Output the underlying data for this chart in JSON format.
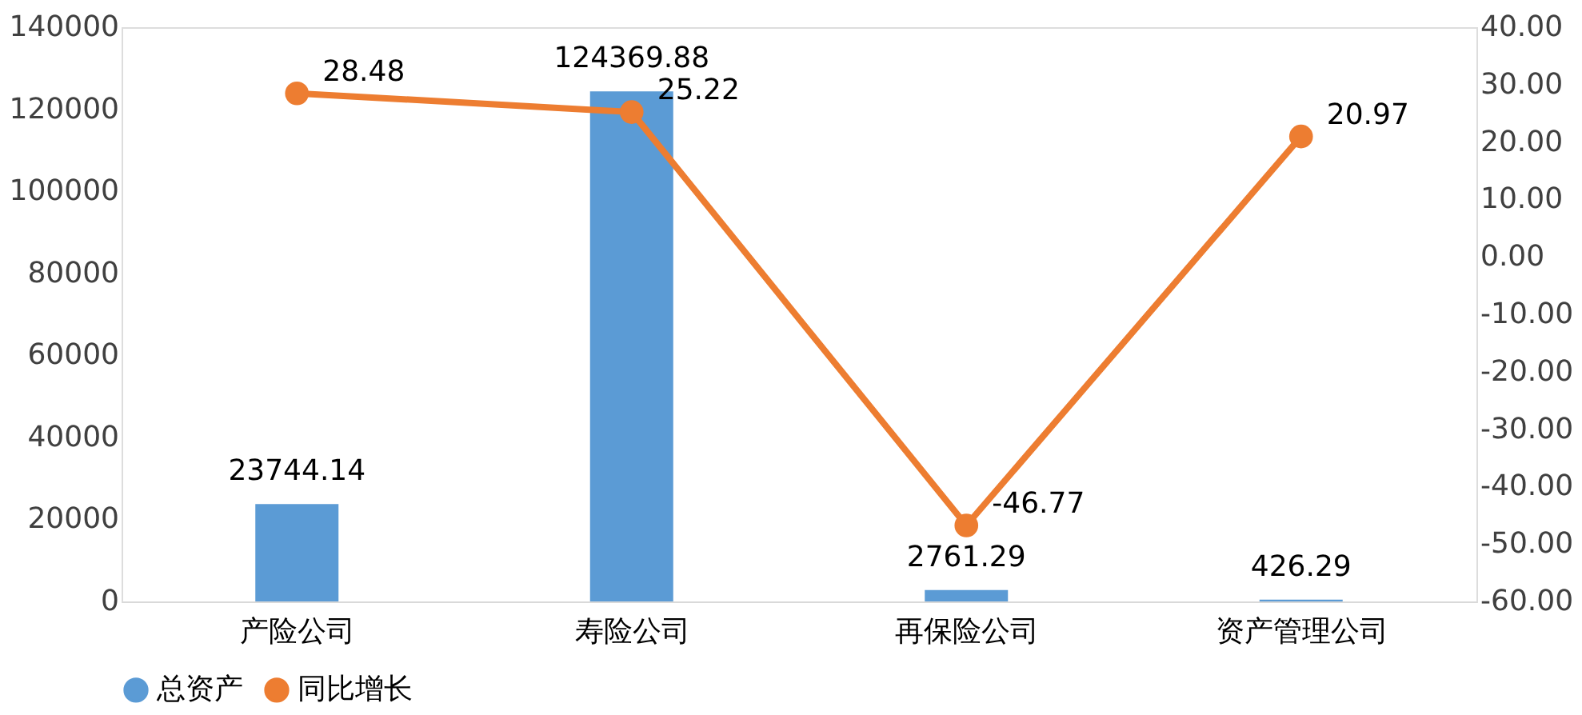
{
  "chart_data": {
    "type": "bar",
    "categories": [
      "产险公司",
      "寿险公司",
      "再保险公司",
      "资产管理公司"
    ],
    "series": [
      {
        "name": "总资产",
        "color": "#5b9bd5",
        "values": [
          23744.14,
          124369.88,
          2761.29,
          426.29
        ]
      },
      {
        "name": "同比增长",
        "type": "line",
        "axis": "y2",
        "color": "#ed7d31",
        "values": [
          28.48,
          25.22,
          -46.77,
          20.97
        ]
      }
    ],
    "ylim": [
      0,
      140000
    ],
    "yticks": [
      0,
      20000,
      40000,
      60000,
      80000,
      100000,
      120000,
      140000
    ],
    "y2lim": [
      -60,
      40
    ],
    "y2ticks": [
      {
        "value": -60,
        "label": "-60.00"
      },
      {
        "value": -50,
        "label": "-50.00"
      },
      {
        "value": -40,
        "label": "-40.00"
      },
      {
        "value": -30,
        "label": "-30.00"
      },
      {
        "value": -20,
        "label": "-20.00"
      },
      {
        "value": -10,
        "label": "-10.00"
      },
      {
        "value": 0,
        "label": "0.00"
      },
      {
        "value": 10,
        "label": "10.00"
      },
      {
        "value": 20,
        "label": "20.00"
      },
      {
        "value": 30,
        "label": "30.00"
      },
      {
        "value": 40,
        "label": "40.00"
      }
    ],
    "data_labels": true,
    "grid": false,
    "legend": "bottom",
    "marker": "circle",
    "line_style": "solid"
  }
}
